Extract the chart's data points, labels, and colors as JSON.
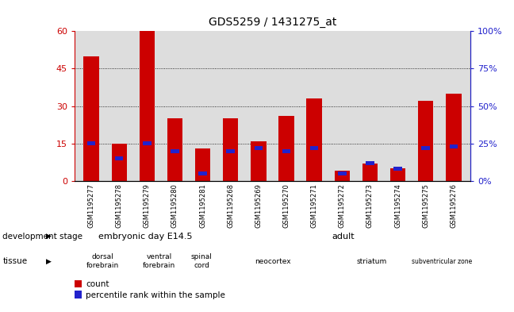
{
  "title": "GDS5259 / 1431275_at",
  "samples": [
    "GSM1195277",
    "GSM1195278",
    "GSM1195279",
    "GSM1195280",
    "GSM1195281",
    "GSM1195268",
    "GSM1195269",
    "GSM1195270",
    "GSM1195271",
    "GSM1195272",
    "GSM1195273",
    "GSM1195274",
    "GSM1195275",
    "GSM1195276"
  ],
  "counts": [
    50,
    15,
    60,
    25,
    13,
    25,
    16,
    26,
    33,
    4,
    7,
    5,
    32,
    35
  ],
  "percentiles": [
    25,
    15,
    25,
    20,
    5,
    20,
    22,
    20,
    22,
    5,
    12,
    8,
    22,
    23
  ],
  "count_color": "#cc0000",
  "percentile_color": "#2222cc",
  "ylim_left": [
    0,
    60
  ],
  "ylim_right": [
    0,
    100
  ],
  "yticks_left": [
    0,
    15,
    30,
    45,
    60
  ],
  "ytick_labels_left": [
    "0",
    "15",
    "30",
    "45",
    "60"
  ],
  "yticks_right": [
    0,
    25,
    50,
    75,
    100
  ],
  "ytick_labels_right": [
    "0%",
    "25%",
    "50%",
    "75%",
    "100%"
  ],
  "bar_width": 0.55,
  "dev_stage_embryonic": {
    "label": "embryonic day E14.5",
    "start": 0,
    "end": 5,
    "color": "#aaddaa"
  },
  "dev_stage_adult": {
    "label": "adult",
    "start": 5,
    "end": 14,
    "color": "#55cc55"
  },
  "tissue_groups": [
    {
      "label": "dorsal\nforebrain",
      "start": 0,
      "end": 2,
      "color": "#dd88dd"
    },
    {
      "label": "ventral\nforebrain",
      "start": 2,
      "end": 4,
      "color": "#dd88dd"
    },
    {
      "label": "spinal\ncord",
      "start": 4,
      "end": 5,
      "color": "#dd88dd"
    },
    {
      "label": "neocortex",
      "start": 5,
      "end": 9,
      "color": "#ffffff"
    },
    {
      "label": "striatum",
      "start": 9,
      "end": 12,
      "color": "#dd88dd"
    },
    {
      "label": "subventricular zone",
      "start": 12,
      "end": 14,
      "color": "#dd88dd"
    }
  ],
  "background_color": "#ffffff",
  "axis_bg": "#dddddd",
  "label_dev": "development stage",
  "label_tissue": "tissue"
}
